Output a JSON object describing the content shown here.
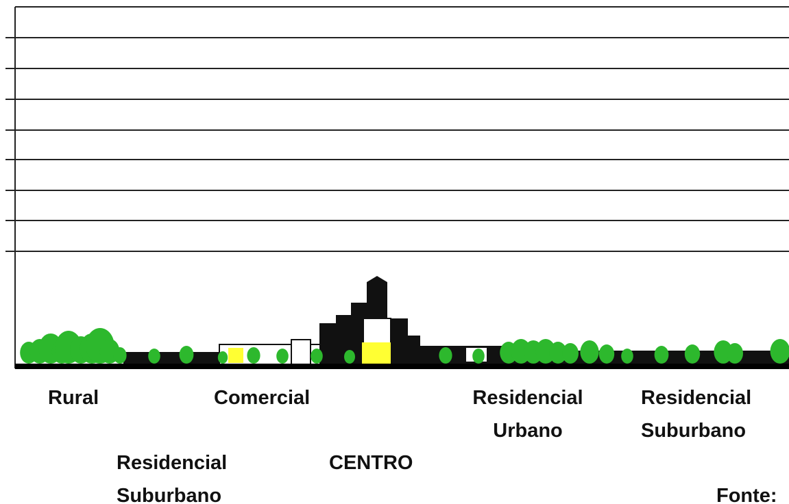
{
  "labels": [
    {
      "lines": [
        "Rural"
      ]
    },
    {
      "lines": [
        "Comercial"
      ]
    },
    {
      "lines": [
        "Residencial",
        "Urbano"
      ]
    },
    {
      "lines": [
        "Residencial",
        "Suburbano"
      ]
    },
    {
      "lines": [
        "Residencial",
        "Suburbano"
      ]
    },
    {
      "lines": [
        "CENTRO"
      ]
    },
    {
      "lines": [
        "Fonte:"
      ]
    }
  ]
}
